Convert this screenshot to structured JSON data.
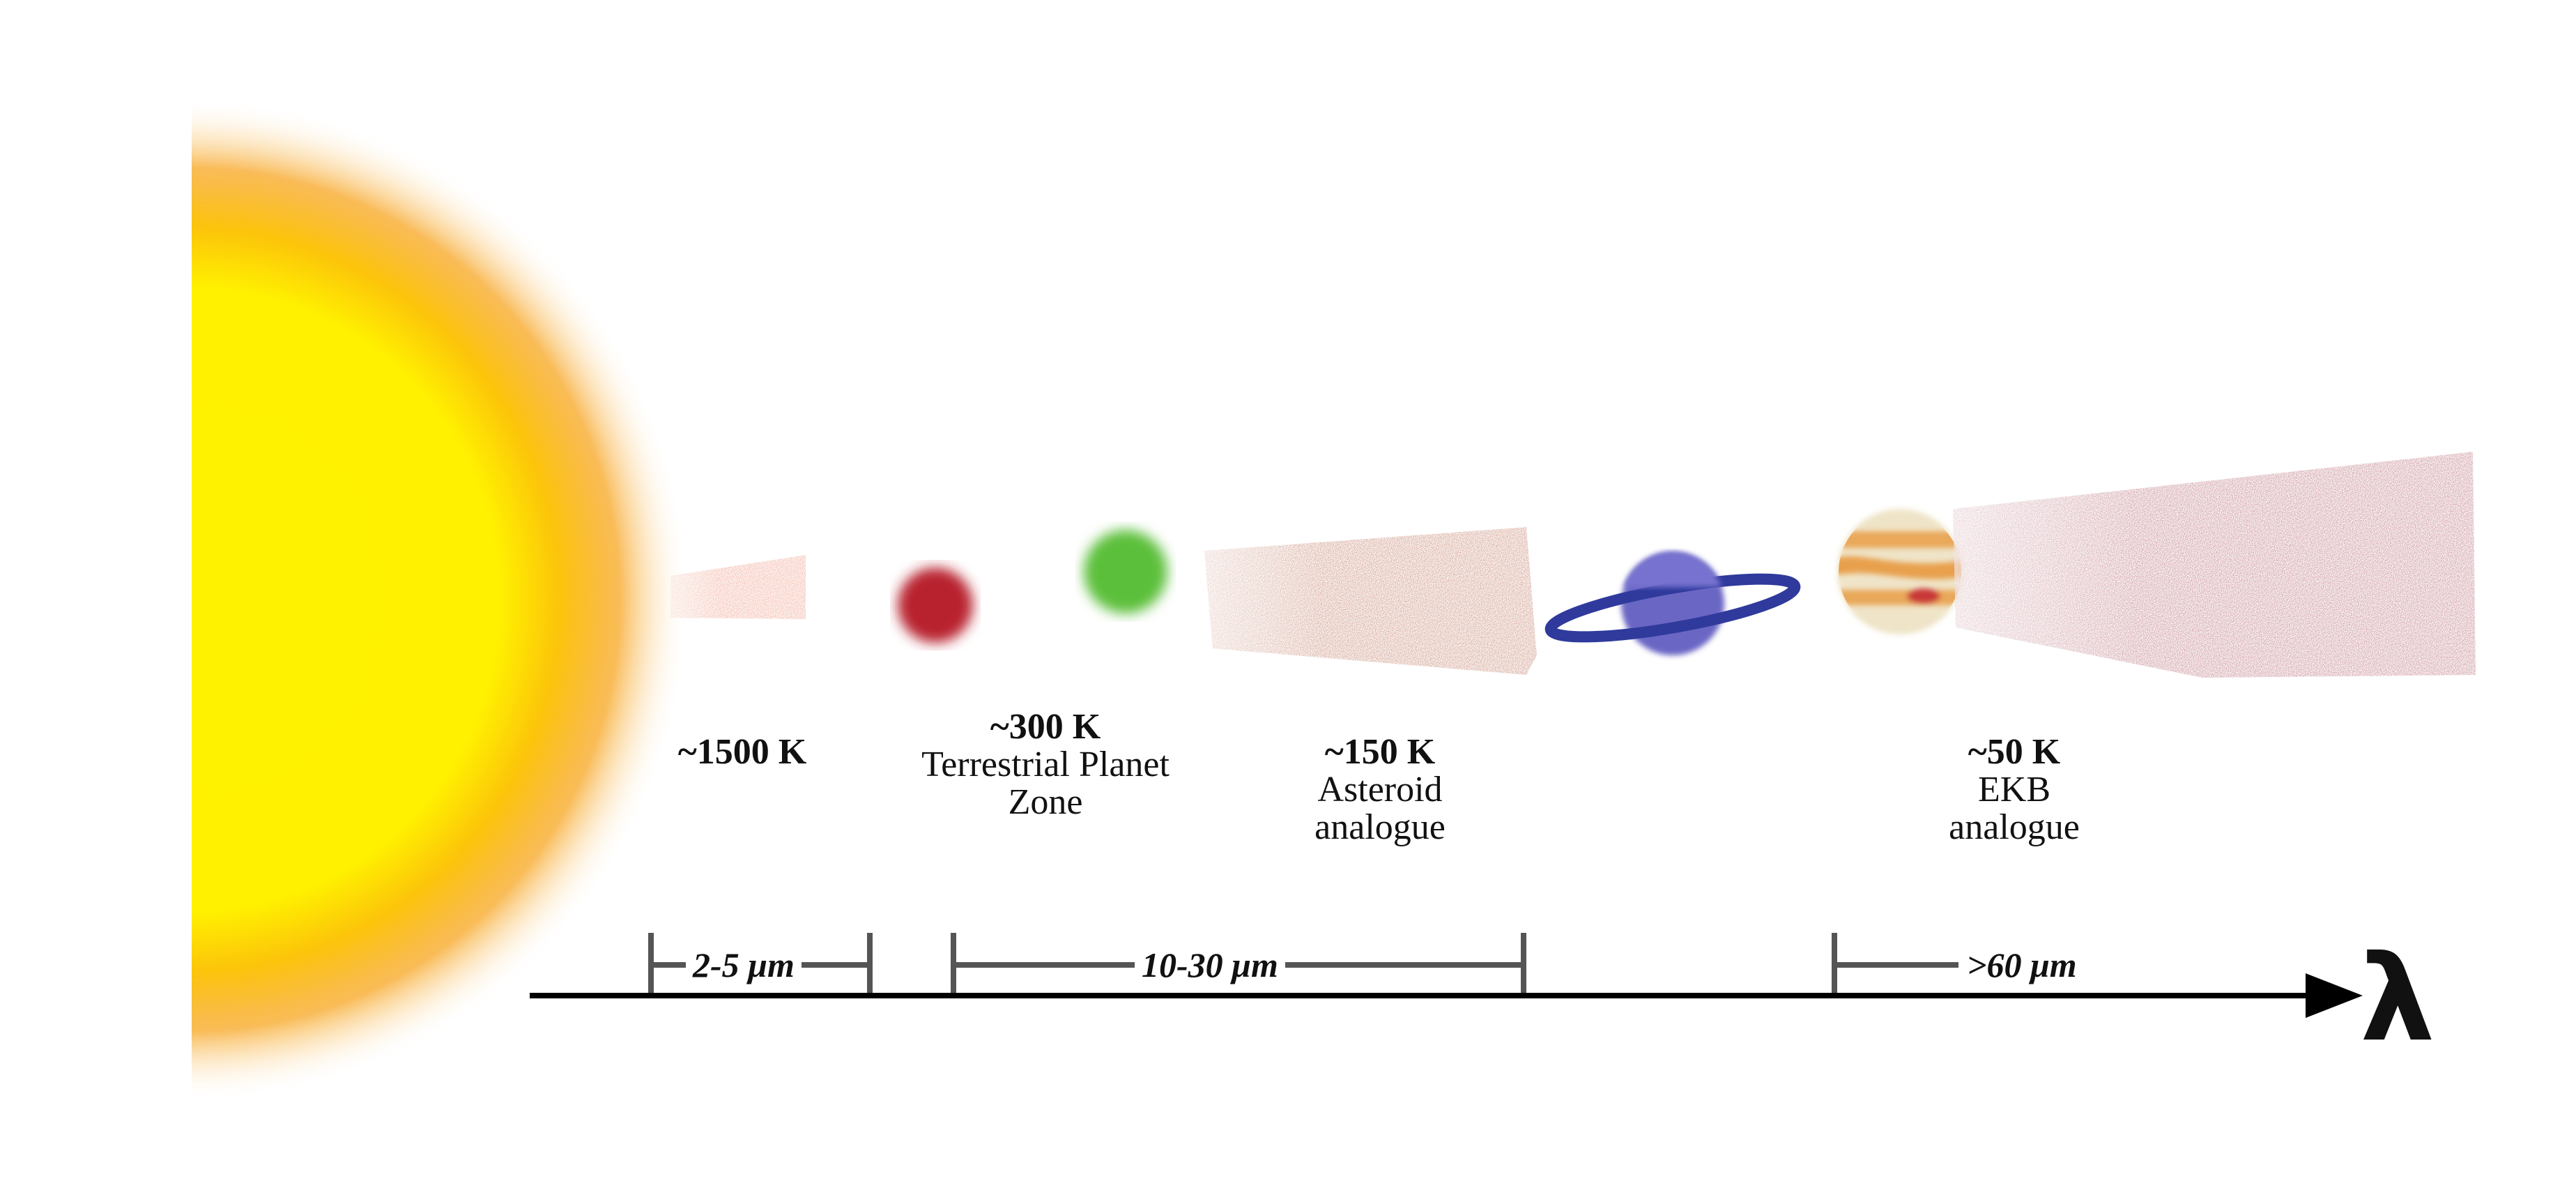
{
  "colors": {
    "star_core": "#fff200",
    "star_edge": "#f7a520",
    "hot_dust": "#e86a4a",
    "red_planet": "#b8222e",
    "green_planet": "#5cbf3a",
    "asteroid_belt": "#c98a76",
    "saturn_body": "#6a66c4",
    "saturn_ring": "#2f3a9c",
    "jupiter": "#e9a85a",
    "ekb_belt": "#c07c86",
    "bracket": "#555555",
    "axis": "#000000"
  },
  "zones": [
    {
      "temperature": "~1500 K",
      "description": ""
    },
    {
      "temperature": "~300 K",
      "description": "Terrestrial Planet Zone"
    },
    {
      "temperature": "~150 K",
      "description": "Asteroid analogue"
    },
    {
      "temperature": "~50 K",
      "description": "EKB analogue"
    }
  ],
  "wavelength_ranges": [
    {
      "label": "2-5 μm"
    },
    {
      "label": "10-30  μm"
    },
    {
      "label": ">60 μm"
    }
  ],
  "axis": {
    "symbol": "λ"
  }
}
